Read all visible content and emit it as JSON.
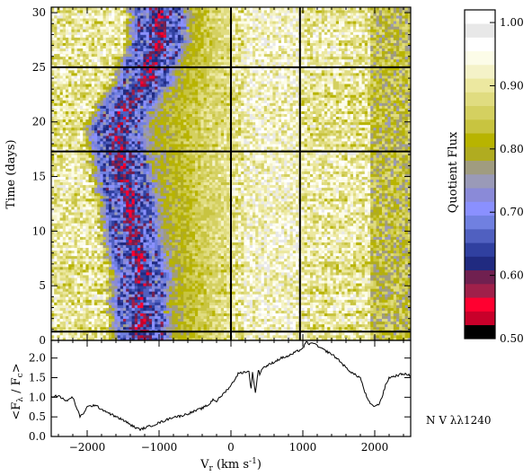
{
  "chart_data": [
    {
      "type": "heatmap",
      "ylabel": "Time (days)",
      "xlim": [
        -2500,
        2500
      ],
      "ylim": [
        0,
        30.5
      ],
      "x_ticks": [
        -2000,
        -1000,
        0,
        1000,
        2000
      ],
      "y_ticks": [
        0,
        5,
        10,
        15,
        20,
        25,
        30
      ],
      "y_tick_labels": [
        "0",
        "5",
        "10",
        "15",
        "20",
        "25",
        "30"
      ],
      "reference_lines": {
        "vertical": [
          0,
          960
        ],
        "horizontal": [
          0.8,
          17.3,
          25
        ]
      },
      "colorbar": {
        "label": "Quotient Flux",
        "range": [
          0.5,
          1.02
        ],
        "ticks": [
          0.5,
          0.6,
          0.7,
          0.8,
          0.9,
          1.0
        ],
        "tick_labels": [
          "0.50",
          "0.60",
          "0.70",
          "0.80",
          "0.90",
          "1.00"
        ],
        "colors": [
          "#000000",
          "#c8002a",
          "#ff0030",
          "#a0204a",
          "#702050",
          "#202a80",
          "#3040a0",
          "#5060c0",
          "#7080e0",
          "#8a90ff",
          "#8a8ad8",
          "#9a9ab8",
          "#a09c80",
          "#b0ac20",
          "#b8b400",
          "#c8c440",
          "#d4d060",
          "#e0dc80",
          "#ece8a0",
          "#f4f2c8",
          "#fcfce8",
          "#ffffff",
          "#e8e8e8",
          "#ffffff"
        ]
      },
      "features": {
        "absorption_trough_center_x": [
          [
            0,
            -1250
          ],
          [
            3,
            -1300
          ],
          [
            6,
            -1250
          ],
          [
            9,
            -1350
          ],
          [
            12,
            -1400
          ],
          [
            15,
            -1500
          ],
          [
            17,
            -1550
          ],
          [
            19,
            -1600
          ],
          [
            21,
            -1500
          ],
          [
            23,
            -1300
          ],
          [
            25,
            -1150
          ],
          [
            27,
            -1050
          ],
          [
            29,
            -1000
          ],
          [
            30,
            -1000
          ]
        ],
        "absorption_trough_half_width": 250,
        "narrow_feature_x": 2050
      }
    },
    {
      "type": "line",
      "xlabel": "V",
      "xlabel_sub": "r",
      "xlabel_rest": " (km s",
      "xlabel_sup": "-1",
      "xlabel_end": ")",
      "ylabel": "<F",
      "ylabel_sub1": "λ",
      "ylabel_mid": " / F",
      "ylabel_sub2": "c",
      "ylabel_end": ">",
      "xlim": [
        -2500,
        2500
      ],
      "ylim": [
        0,
        2.45
      ],
      "x_ticks": [
        -2000,
        -1000,
        0,
        1000,
        2000
      ],
      "x_tick_labels": [
        "−2000",
        "−1000",
        "0",
        "1000",
        "2000"
      ],
      "y_ticks": [
        0.0,
        0.5,
        1.0,
        1.5,
        2.0
      ],
      "y_tick_labels": [
        "0.0",
        "0.5",
        "1.0",
        "1.5",
        "2.0"
      ],
      "x": [
        -2500,
        -2400,
        -2300,
        -2200,
        -2150,
        -2100,
        -2050,
        -2000,
        -1900,
        -1800,
        -1700,
        -1600,
        -1500,
        -1400,
        -1300,
        -1250,
        -1200,
        -1100,
        -1000,
        -900,
        -800,
        -700,
        -600,
        -500,
        -400,
        -300,
        -250,
        -200,
        -100,
        0,
        100,
        200,
        250,
        280,
        300,
        340,
        380,
        400,
        440,
        500,
        600,
        700,
        800,
        900,
        1000,
        1050,
        1100,
        1150,
        1200,
        1300,
        1400,
        1500,
        1600,
        1700,
        1800,
        1850,
        1900,
        1950,
        2000,
        2050,
        2100,
        2150,
        2200,
        2300,
        2400,
        2500
      ],
      "y": [
        1.0,
        1.05,
        0.9,
        1.0,
        0.75,
        0.5,
        0.6,
        0.75,
        0.8,
        0.7,
        0.6,
        0.5,
        0.42,
        0.3,
        0.2,
        0.18,
        0.22,
        0.28,
        0.35,
        0.42,
        0.5,
        0.52,
        0.58,
        0.65,
        0.72,
        0.82,
        0.95,
        0.9,
        1.1,
        1.3,
        1.6,
        1.65,
        1.65,
        1.2,
        1.65,
        1.1,
        1.7,
        1.6,
        1.75,
        1.8,
        1.9,
        2.0,
        2.05,
        2.15,
        2.25,
        2.4,
        2.35,
        2.4,
        2.3,
        2.2,
        2.1,
        1.95,
        1.75,
        1.6,
        1.5,
        1.2,
        0.95,
        0.8,
        0.78,
        0.8,
        1.0,
        1.3,
        1.5,
        1.55,
        1.6,
        1.55
      ]
    }
  ],
  "annotation": "N V λλ1240"
}
